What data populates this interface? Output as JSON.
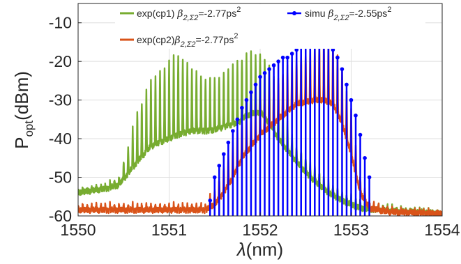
{
  "chart_data": {
    "type": "line",
    "title": "",
    "xlabel_symbol": "λ",
    "xlabel_unit": "(nm)",
    "ylabel_main": "P",
    "ylabel_sub": "opt",
    "ylabel_unit": "(dBm)",
    "xlim": [
      1550,
      1554
    ],
    "ylim": [
      -60,
      -5
    ],
    "xticks": [
      "1550",
      "1551",
      "1552",
      "1553",
      "1554"
    ],
    "yticks": [
      "-10",
      "-20",
      "-30",
      "-40",
      "-50",
      "-60"
    ],
    "grid": true,
    "legend_position": "top-right",
    "legend": {
      "cp1_prefix": "exp(cp1) ",
      "cp1_beta": "β",
      "cp1_sub": "2,Σ2",
      "cp1_value": "=-2.77ps",
      "cp1_sup": "2",
      "cp2_prefix": "exp(cp2)",
      "cp2_beta": "β",
      "cp2_sub": "2,Σ2",
      "cp2_value": "=-2.77ps",
      "cp2_sup": "2",
      "simu_prefix": "simu ",
      "simu_beta": "β",
      "simu_sub": "2,Σ2",
      "simu_value": "=-2.55ps",
      "simu_sup": "2"
    },
    "series": [
      {
        "key": "cp1",
        "color": "#77ac30",
        "envelope_x": [
          1550.0,
          1550.3,
          1550.45,
          1550.55,
          1550.65,
          1550.8,
          1551.0,
          1551.1,
          1551.25,
          1551.45,
          1551.6,
          1551.75,
          1551.85,
          1552.0,
          1552.1,
          1552.2,
          1552.3,
          1552.4,
          1552.55,
          1552.75,
          1552.9,
          1553.1,
          1553.3,
          1553.6,
          1553.8,
          1554.0
        ],
        "envelope_top": [
          -53,
          -52,
          -50,
          -42,
          -33,
          -25,
          -20,
          -18,
          -22,
          -25,
          -23,
          -20,
          -18,
          -18,
          -21,
          -28,
          -36,
          -42,
          -46,
          -51,
          -54,
          -56,
          -57,
          -58,
          -58.5,
          -59
        ],
        "envelope_bottom": [
          -54,
          -53,
          -52,
          -49,
          -46,
          -42,
          -40,
          -39,
          -38,
          -38,
          -37,
          -36,
          -34,
          -33,
          -36,
          -40,
          -43,
          -46,
          -50,
          -54,
          -56,
          -58,
          -58.5,
          -59,
          -59,
          -59.5
        ],
        "ripple_period_nm": 0.05
      },
      {
        "key": "cp2",
        "color": "#d95319",
        "envelope_x": [
          1550.0,
          1551.4,
          1551.5,
          1551.6,
          1551.7,
          1551.8,
          1552.0,
          1552.2,
          1552.4,
          1552.6,
          1552.7,
          1552.8,
          1552.9,
          1553.0,
          1553.1,
          1553.2,
          1553.4,
          1554.0
        ],
        "envelope_top": [
          -57,
          -57,
          -53,
          -47,
          -41,
          -35,
          -29,
          -24,
          -19,
          -16,
          -14,
          -15,
          -22,
          -33,
          -50,
          -56,
          -58,
          -59
        ],
        "envelope_bottom": [
          -58.5,
          -58.5,
          -57,
          -54,
          -50,
          -45,
          -39,
          -35,
          -31,
          -30,
          -30,
          -31,
          -36,
          -44,
          -54,
          -58,
          -59,
          -59.5
        ],
        "ripple_period_nm": 0.05
      },
      {
        "key": "simu",
        "color": "#0000ff",
        "x": [
          1551.45,
          1551.5,
          1551.55,
          1551.6,
          1551.65,
          1551.7,
          1551.75,
          1551.8,
          1551.85,
          1551.9,
          1551.95,
          1552.0,
          1552.05,
          1552.1,
          1552.15,
          1552.2,
          1552.25,
          1552.3,
          1552.35,
          1552.4,
          1552.45,
          1552.5,
          1552.55,
          1552.6,
          1552.65,
          1552.7,
          1552.75,
          1552.8,
          1552.85,
          1552.9,
          1552.95,
          1553.0,
          1553.05,
          1553.1,
          1553.15,
          1553.2
        ],
        "y": [
          -56,
          -50,
          -47,
          -44,
          -41,
          -38,
          -35,
          -32,
          -30,
          -28,
          -26,
          -24,
          -23,
          -22,
          -21,
          -20,
          -19,
          -19,
          -18,
          -17,
          -16,
          -15,
          -15,
          -14,
          -14,
          -15,
          -16,
          -17,
          -19,
          -22,
          -26,
          -30,
          -34,
          -39,
          -45,
          -50
        ]
      }
    ]
  }
}
